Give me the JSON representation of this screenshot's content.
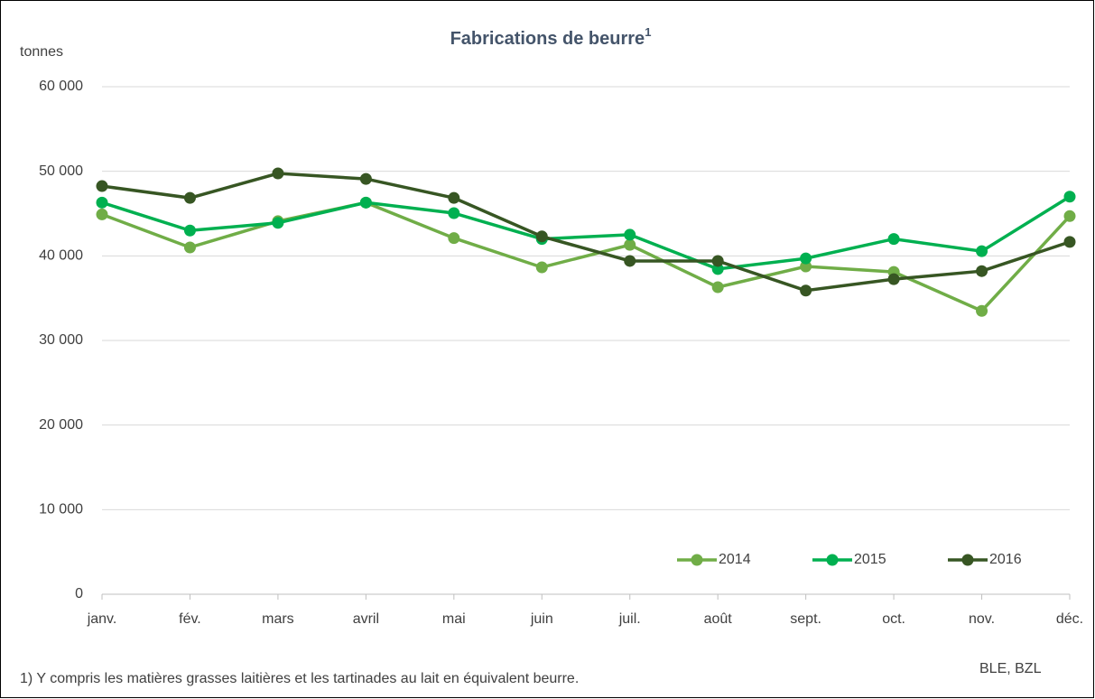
{
  "chart_data": {
    "type": "line",
    "title": "Fabrications de beurre",
    "title_superscript": "1",
    "y_axis_label": "tonnes",
    "footnote": "1) Y compris les matières grasses laitières et les tartinades au lait en équivalent beurre.",
    "source": "BLE, BZL",
    "categories": [
      "janv.",
      "fév.",
      "mars",
      "avril",
      "mai",
      "juin",
      "juil.",
      "août",
      "sept.",
      "oct.",
      "nov.",
      "déc."
    ],
    "series": [
      {
        "name": "2014",
        "color": "#70ad47",
        "values": [
          44900,
          41000,
          44100,
          46300,
          42100,
          38650,
          41300,
          36300,
          38750,
          38100,
          33500,
          44700
        ]
      },
      {
        "name": "2015",
        "color": "#00b050",
        "values": [
          46300,
          43000,
          43900,
          46300,
          45050,
          42000,
          42500,
          38450,
          39700,
          42000,
          40550,
          47000
        ]
      },
      {
        "name": "2016",
        "color": "#375623",
        "values": [
          48250,
          46850,
          49750,
          49100,
          46850,
          42300,
          39400,
          39400,
          35900,
          37250,
          38200,
          41650
        ]
      }
    ],
    "ylim": [
      0,
      60000
    ],
    "yticks": [
      0,
      {
        "value": 10000,
        "label": "10 000"
      },
      {
        "value": 20000,
        "label": "20 000"
      },
      {
        "value": 30000,
        "label": "30 000"
      },
      {
        "value": 40000,
        "label": "40 000"
      },
      {
        "value": 50000,
        "label": "50 000"
      },
      {
        "value": 60000,
        "label": "60 000"
      }
    ],
    "grid": true,
    "legend": "bottom-right"
  }
}
